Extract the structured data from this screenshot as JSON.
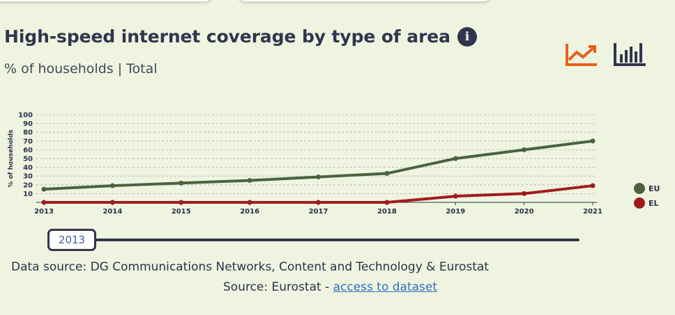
{
  "header": {
    "title": "High-speed internet coverage by type of area",
    "subtitle": "% of households | Total",
    "info_icon": "info-icon"
  },
  "toolbar": {
    "line_chart_icon": "line-chart-icon",
    "bar_chart_icon": "bar-chart-icon",
    "active_color": "#e8601a",
    "inactive_color": "#34344e"
  },
  "slider": {
    "value": "2013"
  },
  "footer": {
    "data_source": "Data source: DG Communications Networks, Content and Technology & Eurostat",
    "source_prefix": "Source: Eurostat - ",
    "link_text": "access to dataset"
  },
  "chart_data": {
    "type": "line",
    "x": [
      "2013",
      "2014",
      "2015",
      "2016",
      "2017",
      "2018",
      "2019",
      "2020",
      "2021"
    ],
    "ylabel": "% of households",
    "ylim": [
      0,
      100
    ],
    "yticks": [
      10,
      20,
      30,
      40,
      50,
      60,
      70,
      80,
      90,
      100
    ],
    "grid": true,
    "legend_position": "right",
    "series": [
      {
        "name": "EU",
        "color": "#4a6240",
        "values": [
          15,
          19,
          22,
          25,
          29,
          33,
          50,
          60,
          70
        ]
      },
      {
        "name": "EL",
        "color": "#a01c1c",
        "values": [
          0,
          0,
          0,
          0,
          0,
          0,
          7,
          10,
          19
        ]
      }
    ]
  }
}
